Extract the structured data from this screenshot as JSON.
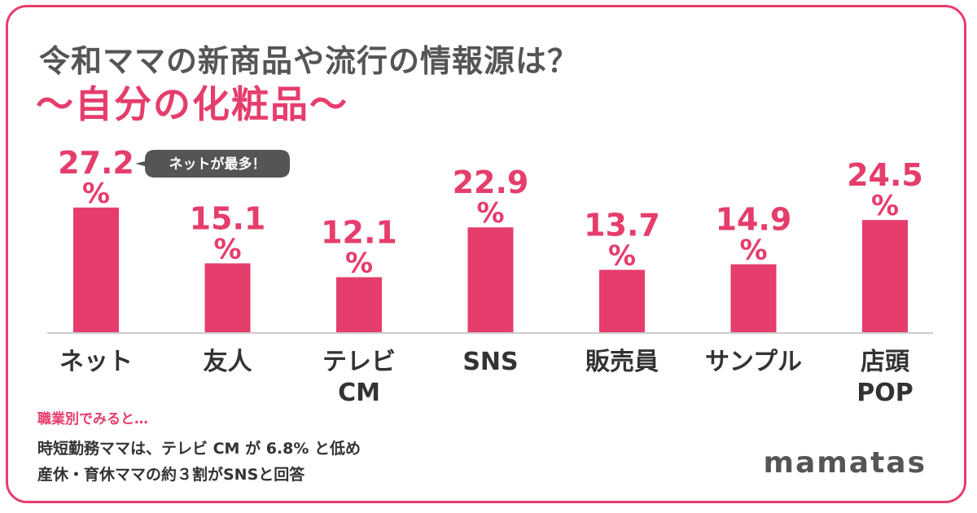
{
  "title": "令和ママの新商品や流行の情報源は？",
  "subtitle": "〜自分の化粧品〜",
  "callout": "ネットが最多！",
  "chart_data": {
    "type": "bar",
    "categories": [
      [
        "ネット"
      ],
      [
        "友人"
      ],
      [
        "テレビ",
        "CM"
      ],
      [
        "SNS"
      ],
      [
        "販売員"
      ],
      [
        "サンプル"
      ],
      [
        "店頭",
        "POP"
      ]
    ],
    "values": [
      27.2,
      15.1,
      12.1,
      22.9,
      13.7,
      14.9,
      24.5
    ],
    "value_labels": [
      "27.2",
      "15.1",
      "12.1",
      "22.9",
      "13.7",
      "14.9",
      "24.5"
    ],
    "unit": "%",
    "bar_color": "#e53d6c",
    "ylim": [
      0,
      30
    ],
    "grid": false
  },
  "footer": {
    "heading": "職業別でみると…",
    "line1": "時短勤務ママは、テレビ CM が 6.8% と低め",
    "line2": "産休・育休ママの約３割がSNSと回答"
  },
  "brand": "mamatas",
  "colors": {
    "accent": "#e53d6c",
    "text": "#555555",
    "callout_bg": "#555555"
  }
}
